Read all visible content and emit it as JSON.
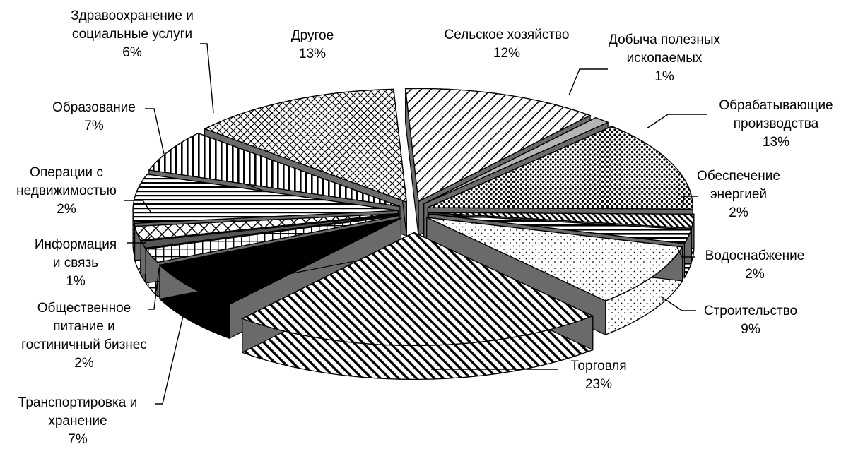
{
  "chart_data": {
    "type": "pie",
    "style": "3d-exploded-monochrome-patterns",
    "legend": "none",
    "title": "",
    "slices": [
      {
        "label": "Сельское хозяйство",
        "value": 12,
        "pct_label": "12%",
        "pattern": "diag-sparse"
      },
      {
        "label": "Добыча полезных ископаемых",
        "value": 1,
        "pct_label": "1%",
        "pattern": "solid-light"
      },
      {
        "label": "Обрабатывающие производства",
        "value": 13,
        "pct_label": "13%",
        "pattern": "dots-dense"
      },
      {
        "label": "Обеспечение энергией",
        "value": 2,
        "pct_label": "2%",
        "pattern": "diag-dense"
      },
      {
        "label": "Водоснабжение",
        "value": 2,
        "pct_label": "2%",
        "pattern": "stripe-h"
      },
      {
        "label": "Строительство",
        "value": 9,
        "pct_label": "9%",
        "pattern": "dots-light"
      },
      {
        "label": "Торговля",
        "value": 23,
        "pct_label": "23%",
        "pattern": "diag-bold"
      },
      {
        "label": "Транспортировка и хранение",
        "value": 7,
        "pct_label": "7%",
        "pattern": "solid-black"
      },
      {
        "label": "Общественное питание и гостиничный бизнес",
        "value": 2,
        "pct_label": "2%",
        "pattern": "grid"
      },
      {
        "label": "Информация и связь",
        "value": 1,
        "pct_label": "1%",
        "pattern": "solid-dark"
      },
      {
        "label": "Операции с недвижимостью",
        "value": 2,
        "pct_label": "2%",
        "pattern": "crosshatch"
      },
      {
        "label": "Образование",
        "value": 7,
        "pct_label": "7%",
        "pattern": "stripe-h-dark"
      },
      {
        "label": "Здравоохранение и социальные услуги",
        "value": 6,
        "pct_label": "6%",
        "pattern": "stripe-v"
      },
      {
        "label": "Другое",
        "value": 13,
        "pct_label": "13%",
        "pattern": "scales"
      }
    ]
  },
  "labels": [
    {
      "lines": [
        "Сельское хозяйство",
        "12%"
      ]
    },
    {
      "lines": [
        "Добыча полезных",
        "ископаемых",
        "1%"
      ]
    },
    {
      "lines": [
        "Обрабатывающие",
        "производства",
        "13%"
      ]
    },
    {
      "lines": [
        "Обеспечение",
        "энергией",
        "2%"
      ]
    },
    {
      "lines": [
        "Водоснабжение",
        "2%"
      ]
    },
    {
      "lines": [
        "Строительство",
        "9%"
      ]
    },
    {
      "lines": [
        "Торговля",
        "23%"
      ]
    },
    {
      "lines": [
        "Транспортировка и",
        "хранение",
        "7%"
      ]
    },
    {
      "lines": [
        "Общественное",
        "питание и",
        "гостиничный бизнес",
        "2%"
      ]
    },
    {
      "lines": [
        "Информация",
        "и связь",
        "1%"
      ]
    },
    {
      "lines": [
        "Операции с",
        "недвижимостью",
        "2%"
      ]
    },
    {
      "lines": [
        "Образование",
        "7%"
      ]
    },
    {
      "lines": [
        "Здравоохранение и",
        "социальные услуги",
        "6%"
      ]
    },
    {
      "lines": [
        "Другое",
        "13%"
      ]
    }
  ]
}
